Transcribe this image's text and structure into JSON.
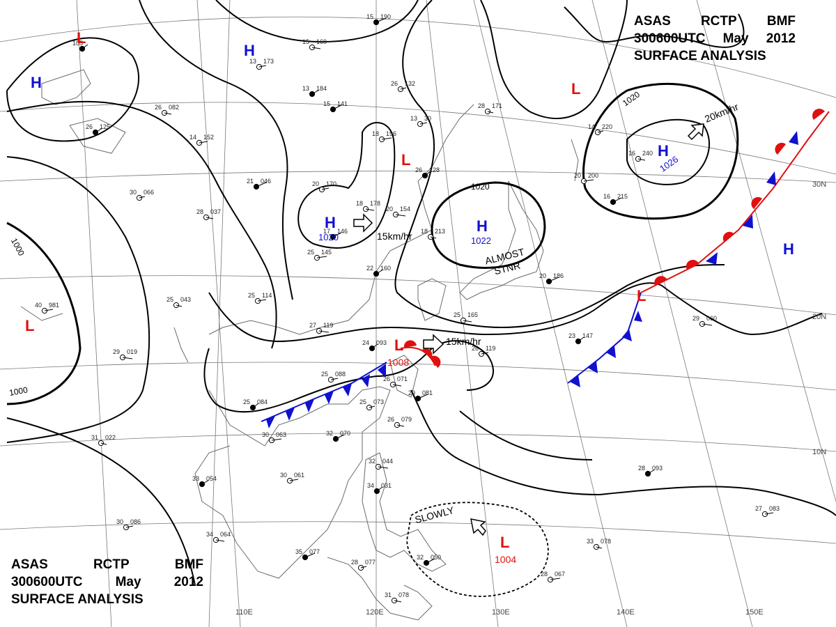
{
  "title": {
    "line1": [
      "ASAS",
      "RCTP",
      "BMF"
    ],
    "line2": [
      "300600UTC",
      "May",
      "2012"
    ],
    "line3": "SURFACE ANALYSIS"
  },
  "colors": {
    "high": "#1010d0",
    "low": "#e01010",
    "isobar": "#000000",
    "grid": "#666666",
    "coast": "#666666"
  },
  "pressure_centers": [
    {
      "type": "H",
      "value": "",
      "kind": "high"
    },
    {
      "type": "H",
      "value": "",
      "kind": "high"
    },
    {
      "type": "H",
      "value": "1020",
      "kind": "high"
    },
    {
      "type": "H",
      "value": "1022",
      "kind": "high"
    },
    {
      "type": "H",
      "value": "1026",
      "kind": "high"
    },
    {
      "type": "H",
      "value": "",
      "kind": "high"
    },
    {
      "type": "L",
      "value": "",
      "kind": "low"
    },
    {
      "type": "L",
      "value": "",
      "kind": "low"
    },
    {
      "type": "L",
      "value": "",
      "kind": "low"
    },
    {
      "type": "L",
      "value": "",
      "kind": "low"
    },
    {
      "type": "L",
      "value": "",
      "kind": "low"
    },
    {
      "type": "L",
      "value": "1008",
      "kind": "low"
    },
    {
      "type": "L",
      "value": "1004",
      "kind": "low"
    }
  ],
  "isobar_labels": [
    "1000",
    "1000",
    "1020",
    "1020"
  ],
  "motion_labels": [
    "15km/hr",
    "15km/hr",
    "20km/hr"
  ],
  "notes": [
    "ALMOST",
    "STNR",
    "SLOWLY"
  ],
  "longitude_labels": [
    "110E",
    "120E",
    "130E",
    "140E",
    "150E"
  ],
  "latitude_labels": [
    "30N",
    "20N",
    "10N"
  ],
  "station_plots": [
    {
      "t": "105",
      "p": ""
    },
    {
      "t": "13",
      "p": "173"
    },
    {
      "t": "15",
      "p": "160"
    },
    {
      "t": "15",
      "p": "190"
    },
    {
      "t": "26",
      "p": "132"
    },
    {
      "t": "26",
      "p": "082"
    },
    {
      "t": "15",
      "p": "141"
    },
    {
      "t": "18",
      "p": "196"
    },
    {
      "t": "28",
      "p": "171"
    },
    {
      "t": "26",
      "p": "125"
    },
    {
      "t": "14",
      "p": "152"
    },
    {
      "t": "20",
      "p": "154"
    },
    {
      "t": "26",
      "p": "128"
    },
    {
      "t": "20",
      "p": "170"
    },
    {
      "t": "18",
      "p": "178"
    },
    {
      "t": "21",
      "p": "046"
    },
    {
      "t": "30",
      "p": "066"
    },
    {
      "t": "28",
      "p": "037"
    },
    {
      "t": "17",
      "p": "146"
    },
    {
      "t": "25",
      "p": "145"
    },
    {
      "t": "18",
      "p": "213"
    },
    {
      "t": "22",
      "p": "160"
    },
    {
      "t": "25",
      "p": "114"
    },
    {
      "t": "27",
      "p": "119"
    },
    {
      "t": "24",
      "p": "093"
    },
    {
      "t": "25",
      "p": "088"
    },
    {
      "t": "26",
      "p": "071"
    },
    {
      "t": "29",
      "p": "081"
    },
    {
      "t": "25",
      "p": "073"
    },
    {
      "t": "26",
      "p": "079"
    },
    {
      "t": "32",
      "p": "070"
    },
    {
      "t": "30",
      "p": "063"
    },
    {
      "t": "31",
      "p": "022"
    },
    {
      "t": "33",
      "p": "054"
    },
    {
      "t": "30",
      "p": "061"
    },
    {
      "t": "32",
      "p": "044"
    },
    {
      "t": "34",
      "p": "031"
    },
    {
      "t": "30",
      "p": "086"
    },
    {
      "t": "34",
      "p": "064"
    },
    {
      "t": "35",
      "p": "077"
    },
    {
      "t": "28",
      "p": "077"
    },
    {
      "t": "31",
      "p": "078"
    },
    {
      "t": "32",
      "p": "050"
    },
    {
      "t": "28",
      "p": "067"
    },
    {
      "t": "33",
      "p": "078"
    },
    {
      "t": "28",
      "p": "093"
    },
    {
      "t": "27",
      "p": "083"
    },
    {
      "t": "29",
      "p": "060"
    },
    {
      "t": "23",
      "p": "147"
    },
    {
      "t": "26",
      "p": "119"
    },
    {
      "t": "25",
      "p": "165"
    },
    {
      "t": "20",
      "p": "186"
    },
    {
      "t": "14",
      "p": "220"
    },
    {
      "t": "16",
      "p": "240"
    },
    {
      "t": "16",
      "p": "215"
    },
    {
      "t": "20",
      "p": "200"
    },
    {
      "t": "25",
      "p": "043"
    },
    {
      "t": "13",
      "p": "184"
    },
    {
      "t": "40",
      "p": "981"
    },
    {
      "t": "29",
      "p": "019"
    },
    {
      "t": "25",
      "p": "084"
    },
    {
      "t": "13",
      "p": "30"
    }
  ]
}
